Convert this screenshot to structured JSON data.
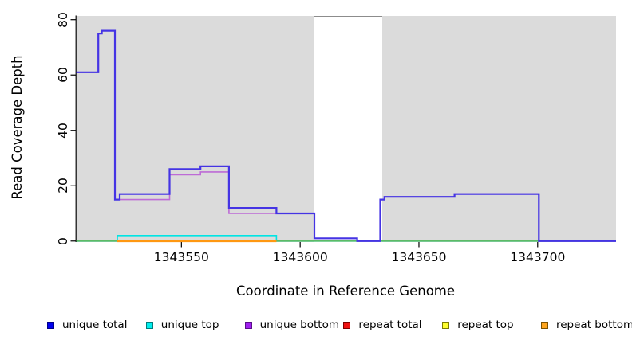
{
  "axis": {
    "x_title": "Coordinate in Reference Genome",
    "y_title": "Read Coverage Depth"
  },
  "chart_data": {
    "type": "line",
    "subtype": "step-coverage-plot",
    "title": "",
    "xlabel": "Coordinate in Reference Genome",
    "ylabel": "Read Coverage Depth",
    "x_domain": [
      1343505.7,
      1343733
    ],
    "y_domain": [
      -0.35,
      81.5
    ],
    "grid": false,
    "panel_background": "#dbdbdb",
    "x_ticks": [
      {
        "value": 1343550,
        "label": "1343550"
      },
      {
        "value": 1343600,
        "label": "1343600"
      },
      {
        "value": 1343650,
        "label": "1343650"
      },
      {
        "value": 1343700,
        "label": "1343700"
      }
    ],
    "y_ticks": [
      {
        "value": 0,
        "label": "0"
      },
      {
        "value": 20,
        "label": "20"
      },
      {
        "value": 40,
        "label": "40"
      },
      {
        "value": 60,
        "label": "60"
      },
      {
        "value": 80,
        "label": "80"
      }
    ],
    "gap_region": {
      "x_start": 1343606,
      "x_end": 1343634.5,
      "top_border_color": "#8c8c8c"
    },
    "series": [
      {
        "id": "unique-top",
        "name": "unique top",
        "color": "#00e4e4",
        "stroke_width": 1.6,
        "end_x": 1343733,
        "points": [
          [
            1343505.7,
            0
          ],
          [
            1343523,
            2
          ],
          [
            1343590,
            0
          ]
        ]
      },
      {
        "id": "zero-baseline",
        "name": "zero baseline",
        "color": "#5cbb66",
        "stroke_width": 1.6,
        "end_x": 1343733,
        "points": [
          [
            1343505.7,
            0
          ]
        ]
      },
      {
        "id": "repeat-bottom",
        "name": "repeat bottom",
        "color": "#ff9812",
        "stroke_width": 2.6,
        "end_x": 1343590,
        "points": [
          [
            1343523,
            0
          ]
        ]
      },
      {
        "id": "unique-bottom",
        "name": "unique bottom",
        "color": "#bd6bd6",
        "stroke_width": 1.6,
        "end_x": 1343733,
        "points": [
          [
            1343505.7,
            61
          ],
          [
            1343515,
            75
          ],
          [
            1343516.5,
            76
          ],
          [
            1343522,
            15
          ],
          [
            1343545,
            24
          ],
          [
            1343558,
            25
          ],
          [
            1343570,
            10
          ],
          [
            1343606,
            1
          ],
          [
            1343624,
            0
          ],
          [
            1343633.7,
            15
          ],
          [
            1343635.5,
            16
          ],
          [
            1343665,
            17
          ],
          [
            1343700.5,
            0
          ]
        ]
      },
      {
        "id": "unique-total",
        "name": "unique total",
        "color": "#4534e4",
        "stroke_width": 2.2,
        "end_x": 1343733,
        "points": [
          [
            1343505.7,
            61
          ],
          [
            1343515,
            75
          ],
          [
            1343516.5,
            76
          ],
          [
            1343522,
            15
          ],
          [
            1343524,
            17
          ],
          [
            1343545,
            26
          ],
          [
            1343558,
            27
          ],
          [
            1343570,
            12
          ],
          [
            1343590,
            10
          ],
          [
            1343606,
            1
          ],
          [
            1343624,
            0
          ],
          [
            1343633.7,
            15
          ],
          [
            1343635.5,
            16
          ],
          [
            1343665,
            17
          ],
          [
            1343700.5,
            0
          ]
        ]
      }
    ]
  },
  "legend": {
    "items": [
      {
        "label": "unique total",
        "fill": "#0000ee",
        "border": "#00008b"
      },
      {
        "label": "unique top",
        "fill": "#00eeee",
        "border": "#007d7d"
      },
      {
        "label": "unique bottom",
        "fill": "#a020f0",
        "border": "#5a0f8a"
      },
      {
        "label": "repeat total",
        "fill": "#ee1212",
        "border": "#7d0000"
      },
      {
        "label": "repeat top",
        "fill": "#ffff2e",
        "border": "#7d7d00"
      },
      {
        "label": "repeat bottom",
        "fill": "#ffa51e",
        "border": "#7d5200"
      }
    ]
  }
}
